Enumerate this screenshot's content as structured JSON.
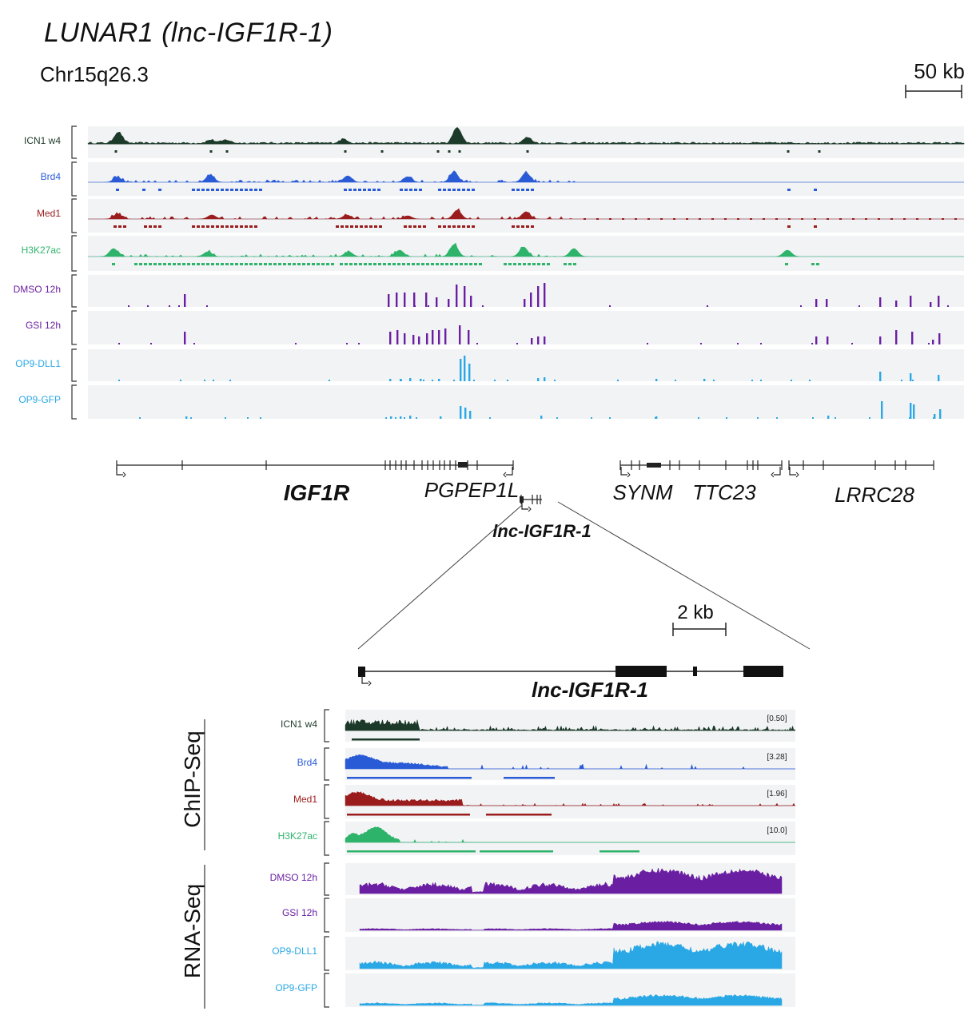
{
  "title": "LUNAR1 (lnc-IGF1R-1)",
  "chromosome": "Chr15q26.3",
  "scale_top": "50 kb",
  "scale_zoom": "2 kb",
  "colors": {
    "icn1": "#1c3a2a",
    "brd4": "#2a5bd7",
    "med1": "#9b1c1c",
    "h3k27ac": "#2eb36b",
    "dmso": "#6a1fa3",
    "gsi": "#6a1fa3",
    "dll1": "#2aa8e6",
    "gfp": "#2aa8e6",
    "track_bg": "#f2f3f4"
  },
  "tracks_top": [
    {
      "label": "ICN1 w4",
      "color_key": "icn1"
    },
    {
      "label": "Brd4",
      "color_key": "brd4"
    },
    {
      "label": "Med1",
      "color_key": "med1"
    },
    {
      "label": "H3K27ac",
      "color_key": "h3k27ac"
    },
    {
      "label": "DMSO 12h",
      "color_key": "dmso"
    },
    {
      "label": "GSI 12h",
      "color_key": "gsi"
    },
    {
      "label": "OP9-DLL1",
      "color_key": "dll1"
    },
    {
      "label": "OP9-GFP",
      "color_key": "gfp"
    }
  ],
  "genes": [
    {
      "name": "IGF1R",
      "bold": true
    },
    {
      "name": "PGPEP1L",
      "bold": false
    },
    {
      "name": "lnc-IGF1R-1",
      "bold": true
    },
    {
      "name": "SYNM",
      "bold": false
    },
    {
      "name": "TTC23",
      "bold": false
    },
    {
      "name": "LRRC28",
      "bold": false
    }
  ],
  "zoom_gene": "lnc-IGF1R-1",
  "group_labels": {
    "chip": "ChIP-Seq",
    "rna": "RNA-Seq"
  },
  "tracks_zoom": [
    {
      "label": "ICN1 w4",
      "color_key": "icn1",
      "scale": "[0.50]"
    },
    {
      "label": "Brd4",
      "color_key": "brd4",
      "scale": "[3.28]"
    },
    {
      "label": "Med1",
      "color_key": "med1",
      "scale": "[1.96]"
    },
    {
      "label": "H3K27ac",
      "color_key": "h3k27ac",
      "scale": "[10.0]"
    },
    {
      "label": "DMSO 12h",
      "color_key": "dmso",
      "scale": ""
    },
    {
      "label": "GSI 12h",
      "color_key": "gsi",
      "scale": ""
    },
    {
      "label": "OP9-DLL1",
      "color_key": "dll1",
      "scale": ""
    },
    {
      "label": "OP9-GFP",
      "color_key": "gfp",
      "scale": ""
    }
  ]
}
